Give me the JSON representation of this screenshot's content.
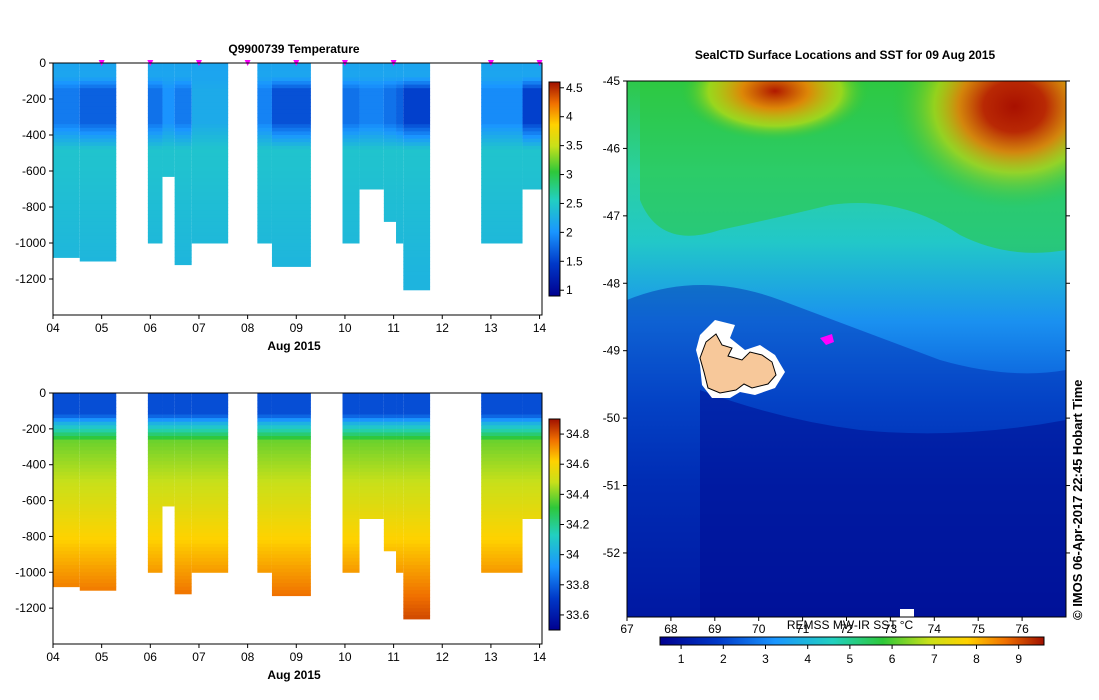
{
  "chart_data": [
    {
      "type": "heatmap",
      "title": "Q9900739  Temperature",
      "xlabel": "Aug 2015",
      "ylabel": "",
      "xlim": [
        4,
        14.05
      ],
      "ylim": [
        -1400,
        0
      ],
      "x_ticks": [
        "04",
        "05",
        "06",
        "07",
        "08",
        "09",
        "10",
        "11",
        "12",
        "13",
        "14"
      ],
      "y_ticks": [
        "0",
        "-200",
        "-400",
        "-600",
        "-800",
        "-1000",
        "-1200"
      ],
      "colorbar": {
        "min": 0.9,
        "max": 4.6,
        "ticks": [
          "1",
          "1.5",
          "2",
          "2.5",
          "3",
          "3.5",
          "4",
          "4.5"
        ]
      },
      "profile_markers": [
        5.0,
        6.0,
        7.0,
        8.0,
        9.0,
        10.0,
        11.0,
        13.0,
        14.0
      ],
      "profiles": [
        {
          "x0": 4.0,
          "x1": 4.55,
          "depth": 1080,
          "core": 1.85
        },
        {
          "x0": 4.55,
          "x1": 5.3,
          "depth": 1100,
          "core": 1.7
        },
        {
          "x0": 5.95,
          "x1": 6.25,
          "depth": 1000,
          "core": 1.8
        },
        {
          "x0": 6.25,
          "x1": 6.5,
          "depth": 630,
          "core": 2.0
        },
        {
          "x0": 6.5,
          "x1": 6.85,
          "depth": 1120,
          "core": 1.85
        },
        {
          "x0": 6.85,
          "x1": 7.6,
          "depth": 1000,
          "core": 2.2
        },
        {
          "x0": 8.2,
          "x1": 8.5,
          "depth": 1000,
          "core": 1.9
        },
        {
          "x0": 8.5,
          "x1": 9.3,
          "depth": 1130,
          "core": 1.6
        },
        {
          "x0": 9.95,
          "x1": 10.3,
          "depth": 1000,
          "core": 1.8
        },
        {
          "x0": 10.3,
          "x1": 10.8,
          "depth": 700,
          "core": 1.9
        },
        {
          "x0": 10.8,
          "x1": 11.05,
          "depth": 880,
          "core": 1.8
        },
        {
          "x0": 11.05,
          "x1": 11.2,
          "depth": 1000,
          "core": 1.7
        },
        {
          "x0": 11.2,
          "x1": 11.75,
          "depth": 1260,
          "core": 1.5
        },
        {
          "x0": 12.8,
          "x1": 13.65,
          "depth": 1000,
          "core": 1.95
        },
        {
          "x0": 13.65,
          "x1": 14.05,
          "depth": 700,
          "core": 1.5
        }
      ]
    },
    {
      "type": "heatmap",
      "title": "",
      "xlabel": "Aug 2015",
      "ylabel": "",
      "xlim": [
        4,
        14.05
      ],
      "ylim": [
        -1400,
        0
      ],
      "x_ticks": [
        "04",
        "05",
        "06",
        "07",
        "08",
        "09",
        "10",
        "11",
        "12",
        "13",
        "14"
      ],
      "y_ticks": [
        "0",
        "-200",
        "-400",
        "-600",
        "-800",
        "-1000",
        "-1200"
      ],
      "colorbar": {
        "min": 33.5,
        "max": 34.9,
        "ticks": [
          "33.6",
          "33.8",
          "34",
          "34.2",
          "34.4",
          "34.6",
          "34.8"
        ]
      },
      "profiles": [
        {
          "x0": 4.0,
          "x1": 4.55,
          "depth": 1080
        },
        {
          "x0": 4.55,
          "x1": 5.3,
          "depth": 1100
        },
        {
          "x0": 5.95,
          "x1": 6.25,
          "depth": 1000
        },
        {
          "x0": 6.25,
          "x1": 6.5,
          "depth": 630
        },
        {
          "x0": 6.5,
          "x1": 6.85,
          "depth": 1120
        },
        {
          "x0": 6.85,
          "x1": 7.6,
          "depth": 1000
        },
        {
          "x0": 8.2,
          "x1": 8.5,
          "depth": 1000
        },
        {
          "x0": 8.5,
          "x1": 9.3,
          "depth": 1130
        },
        {
          "x0": 9.95,
          "x1": 10.3,
          "depth": 1000
        },
        {
          "x0": 10.3,
          "x1": 10.8,
          "depth": 700
        },
        {
          "x0": 10.8,
          "x1": 11.05,
          "depth": 880
        },
        {
          "x0": 11.05,
          "x1": 11.2,
          "depth": 1000
        },
        {
          "x0": 11.2,
          "x1": 11.75,
          "depth": 1260
        },
        {
          "x0": 12.8,
          "x1": 13.65,
          "depth": 1000
        },
        {
          "x0": 13.65,
          "x1": 14.05,
          "depth": 700
        }
      ]
    },
    {
      "type": "heatmap",
      "title": "SealCTD Surface Locations and SST for 09 Aug 2015",
      "xlabel": "",
      "ylabel": "",
      "xlim": [
        67,
        77
      ],
      "ylim": [
        -52.95,
        -45
      ],
      "x_ticks": [
        "67",
        "68",
        "69",
        "70",
        "71",
        "72",
        "73",
        "74",
        "75",
        "76"
      ],
      "y_ticks": [
        "-45",
        "-46",
        "-47",
        "-48",
        "-49",
        "-50",
        "-51",
        "-52"
      ],
      "colorbar": {
        "label": "REMSS MW-IR SST °C",
        "min": 0.5,
        "max": 9.6,
        "ticks": [
          "1",
          "2",
          "3",
          "4",
          "5",
          "6",
          "7",
          "8",
          "9"
        ]
      },
      "surface_location": {
        "lon": 71.4,
        "lat": -48.8
      },
      "island": "Kerguelen"
    }
  ],
  "timestamp": "© IMOS 06-Apr-2017 22:45 Hobart Time"
}
